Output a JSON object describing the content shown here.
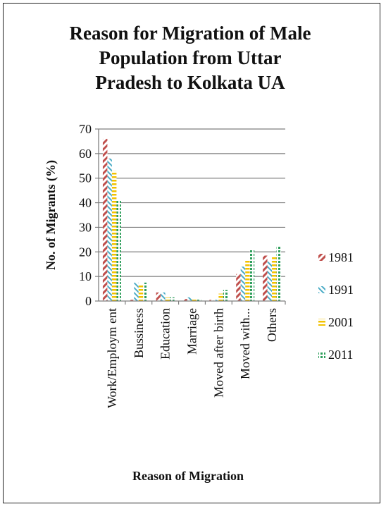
{
  "chart_data": {
    "type": "bar",
    "title_lines": [
      "Reason for Migration of Male",
      "Population  from Uttar",
      "Pradesh to Kolkata UA"
    ],
    "xlabel": "Reason of Migration",
    "ylabel": "No. of Migrants  (%)",
    "ylim": [
      0,
      70
    ],
    "yticks": [
      0,
      10,
      20,
      30,
      40,
      50,
      60,
      70
    ],
    "grid": true,
    "legend_position": "right",
    "categories": [
      "Work/Employment",
      "Bussiness",
      "Education",
      "Marriage",
      "Moved after birth",
      "Moved with...",
      "Others"
    ],
    "category_labels": [
      "Work/Empl​oym ent",
      "Bussiness",
      "Education",
      "Marriage",
      "Moved after birth",
      "Moved with...",
      "Others"
    ],
    "series": [
      {
        "name": "1981",
        "color": "#c0504d",
        "pattern": "diag-red",
        "values": [
          66,
          0.5,
          3.5,
          0.8,
          0.5,
          11,
          18.5
        ]
      },
      {
        "name": "1991",
        "color": "#4bacc6",
        "pattern": "diag-blue",
        "values": [
          58,
          7.5,
          3.5,
          1.5,
          0.5,
          14,
          16
        ]
      },
      {
        "name": "2001",
        "color": "#f2c200",
        "pattern": "horiz-yellow",
        "values": [
          53,
          7,
          1.5,
          1.2,
          3,
          17,
          18
        ]
      },
      {
        "name": "2011",
        "color": "#2e9e5b",
        "pattern": "dots-green",
        "values": [
          41,
          7.5,
          1.5,
          1,
          4.5,
          21,
          22.5
        ]
      }
    ]
  }
}
